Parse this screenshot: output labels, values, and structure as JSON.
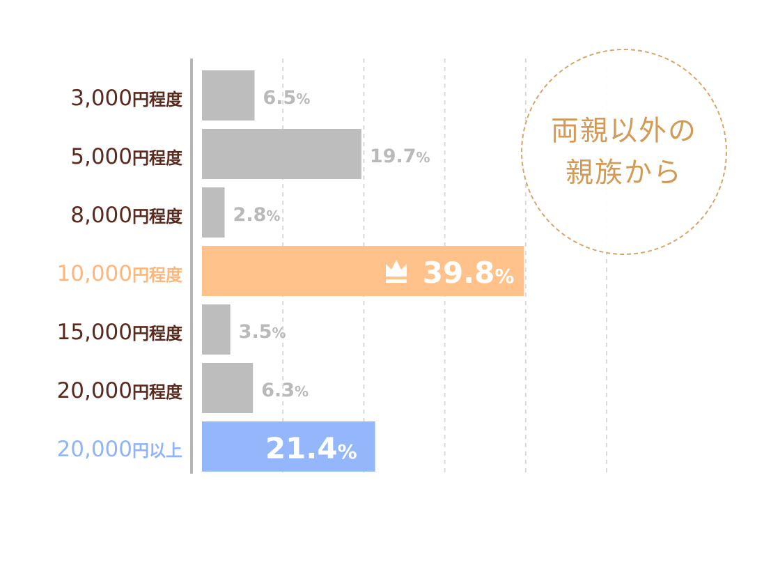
{
  "chart_data": {
    "type": "bar",
    "orientation": "horizontal",
    "categories": [
      "3,000",
      "5,000",
      "8,000",
      "10,000",
      "15,000",
      "20,000",
      "20,000"
    ],
    "category_suffixes": [
      "円程度",
      "円程度",
      "円程度",
      "円程度",
      "円程度",
      "円程度",
      "円以上"
    ],
    "values": [
      6.5,
      19.7,
      2.8,
      39.8,
      3.5,
      6.3,
      21.4
    ],
    "value_labels": [
      "6.5",
      "19.7",
      "2.8",
      "39.8",
      "3.5",
      "6.3",
      "21.4"
    ],
    "unit": "%",
    "highlight_index": 3,
    "xlim": [
      0,
      60
    ],
    "grid": true,
    "colors": {
      "default_bar": "#bdbdbd",
      "highlight_bar": "#ffc28a",
      "last_bar": "#94b7fb",
      "label_default": "#5b2a1e",
      "label_highlight": "#ffb67a",
      "label_last": "#8fb4fa",
      "value_label": "#b9b9b9",
      "axis": "#b5b5b5",
      "grid": "#d9d9d9"
    },
    "icons": {
      "highlight": "crown-icon"
    }
  },
  "annotation": {
    "line1": "両親以外の",
    "line2": "親族から"
  }
}
